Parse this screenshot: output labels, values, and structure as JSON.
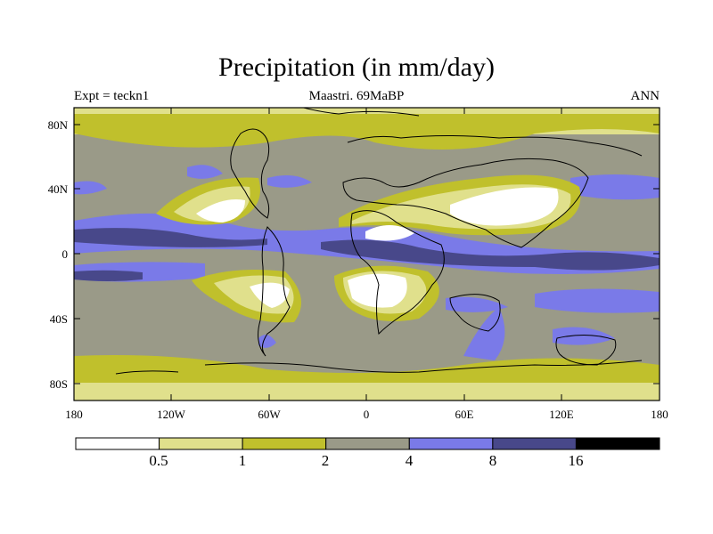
{
  "header": {
    "title": "Precipitation (in mm/day)",
    "left": "Expt = teckn1",
    "center": "Maastri.  69MaBP",
    "right": "ANN"
  },
  "axes": {
    "y_labels": [
      "80N",
      "40N",
      "0",
      "40S",
      "80S"
    ],
    "x_labels": [
      "180",
      "120W",
      "60W",
      "0",
      "60E",
      "120E",
      "180"
    ]
  },
  "colorbar": {
    "labels": [
      "0.5",
      "1",
      "2",
      "4",
      "8",
      "16"
    ],
    "colors": [
      "#ffffff",
      "#e0e08c",
      "#c0c02c",
      "#9a9a88",
      "#7a7ae8",
      "#48488a",
      "#000000"
    ]
  },
  "palette": {
    "white": "#ffffff",
    "light_yellow": "#e0e08c",
    "olive": "#c0c02c",
    "gray": "#9a9a88",
    "blue": "#7a7ae8",
    "dark_blue": "#48488a"
  }
}
